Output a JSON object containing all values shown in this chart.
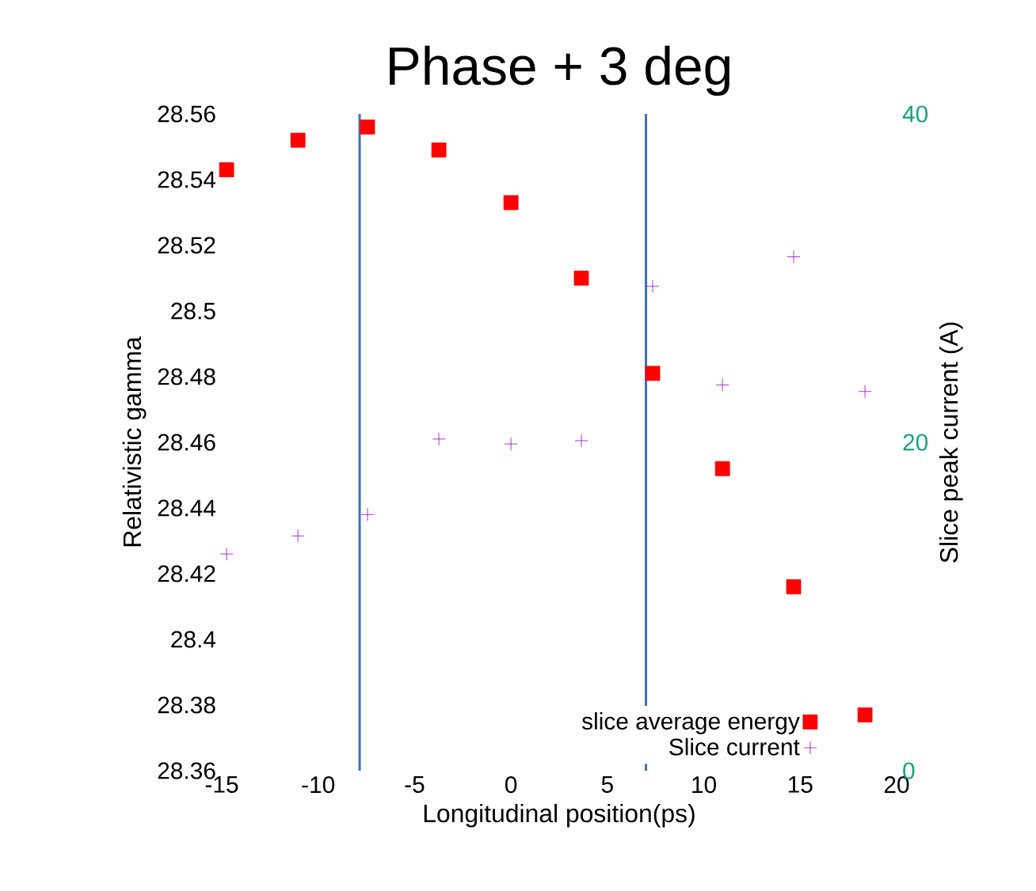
{
  "chart_data": {
    "type": "scatter",
    "title": "Phase + 3 deg",
    "xlabel": "Longitudinal position(ps)",
    "ylabel": "Relativistic gamma",
    "y2label": "Slice peak current (A)",
    "xlim": [
      -15,
      20
    ],
    "xticks": [
      -15,
      -10,
      -5,
      0,
      5,
      10,
      15,
      20
    ],
    "ylim": [
      28.36,
      28.56
    ],
    "yticks": [
      28.36,
      28.38,
      28.4,
      28.42,
      28.44,
      28.46,
      28.48,
      28.5,
      28.52,
      28.54,
      28.56
    ],
    "y2lim": [
      0,
      40
    ],
    "y2ticks": [
      0,
      20,
      40
    ],
    "legend": "bottom right",
    "grid": false,
    "series": [
      {
        "name": "slice average energy",
        "color": "#ff0000",
        "marker": "square",
        "x": [
          -14.75,
          -11.05,
          -7.44,
          -3.74,
          0,
          3.65,
          7.35,
          10.97,
          14.66,
          18.36
        ],
        "values": [
          28.543,
          28.552,
          28.556,
          28.549,
          28.533,
          28.51,
          28.481,
          28.452,
          28.416,
          28.377
        ]
      },
      {
        "name": "Slice current",
        "color": "#9400d3",
        "marker": "cross",
        "axis": "y2",
        "x": [
          -14.75,
          -11.05,
          -7.44,
          -3.74,
          0,
          3.65,
          7.35,
          10.97,
          14.66,
          18.36
        ],
        "values": [
          13.2,
          14.3,
          15.6,
          20.2,
          19.9,
          20.1,
          29.5,
          23.5,
          31.3,
          23.1
        ]
      }
    ],
    "ref_lines": [
      {
        "axis": "x",
        "value": -7.85,
        "color": "#3f72b5"
      },
      {
        "axis": "x",
        "value": 7.0,
        "color": "#3f72b5"
      }
    ]
  }
}
